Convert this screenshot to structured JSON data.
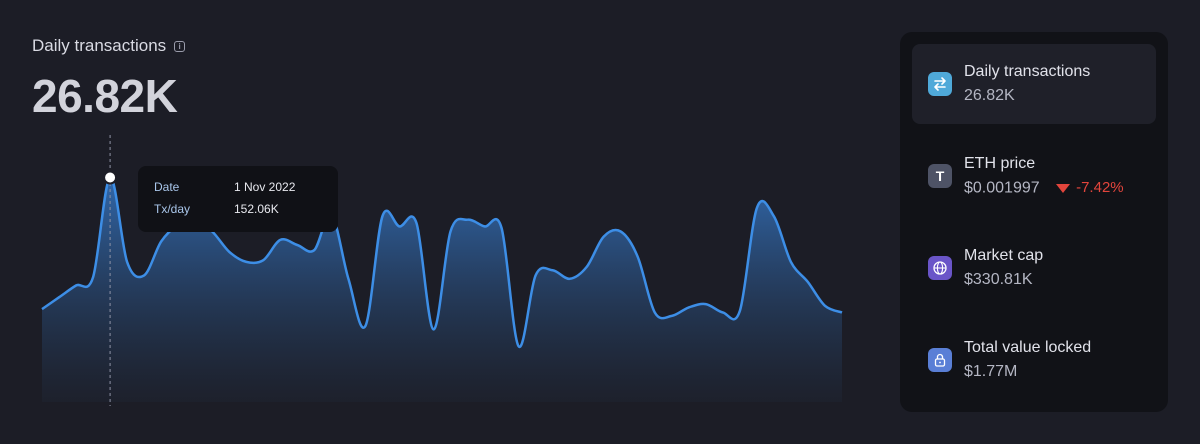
{
  "header": {
    "title": "Daily transactions",
    "value": "26.82K"
  },
  "tooltip": {
    "date_label": "Date",
    "date_value": "1 Nov 2022",
    "tx_label": "Tx/day",
    "tx_value": "152.06K"
  },
  "sidebar": {
    "items": [
      {
        "label": "Daily transactions",
        "value": "26.82K",
        "icon": "swap-arrows-icon",
        "icon_color": "#4fa9d9",
        "active": true
      },
      {
        "label": "ETH price",
        "value": "$0.001997",
        "change": "-7.42%",
        "change_color": "#e2453c",
        "icon": "token-t-icon",
        "icon_color": "#4e5366"
      },
      {
        "label": "Market cap",
        "value": "$330.81K",
        "icon": "globe-icon",
        "icon_color": "#6a55c8"
      },
      {
        "label": "Total value locked",
        "value": "$1.77M",
        "icon": "lock-icon",
        "icon_color": "#5a7fd6"
      }
    ]
  },
  "chart_data": {
    "type": "area",
    "title": "Daily transactions",
    "xlabel": "",
    "ylabel": "",
    "grid": false,
    "highlight_index": 4,
    "series": [
      {
        "values": [
          42,
          49,
          56,
          61,
          120,
          70,
          62,
          82,
          92,
          95,
          88,
          76,
          70,
          71,
          83,
          80,
          77,
          98,
          60,
          32,
          97,
          91,
          93,
          30,
          88,
          95,
          91,
          90,
          20,
          62,
          65,
          60,
          67,
          85,
          88,
          73,
          40,
          38,
          43,
          45,
          40,
          41,
          102,
          97,
          70,
          58,
          44,
          40
        ]
      }
    ],
    "ylim": [
      0,
      160
    ],
    "color": "#3d8ee6"
  }
}
